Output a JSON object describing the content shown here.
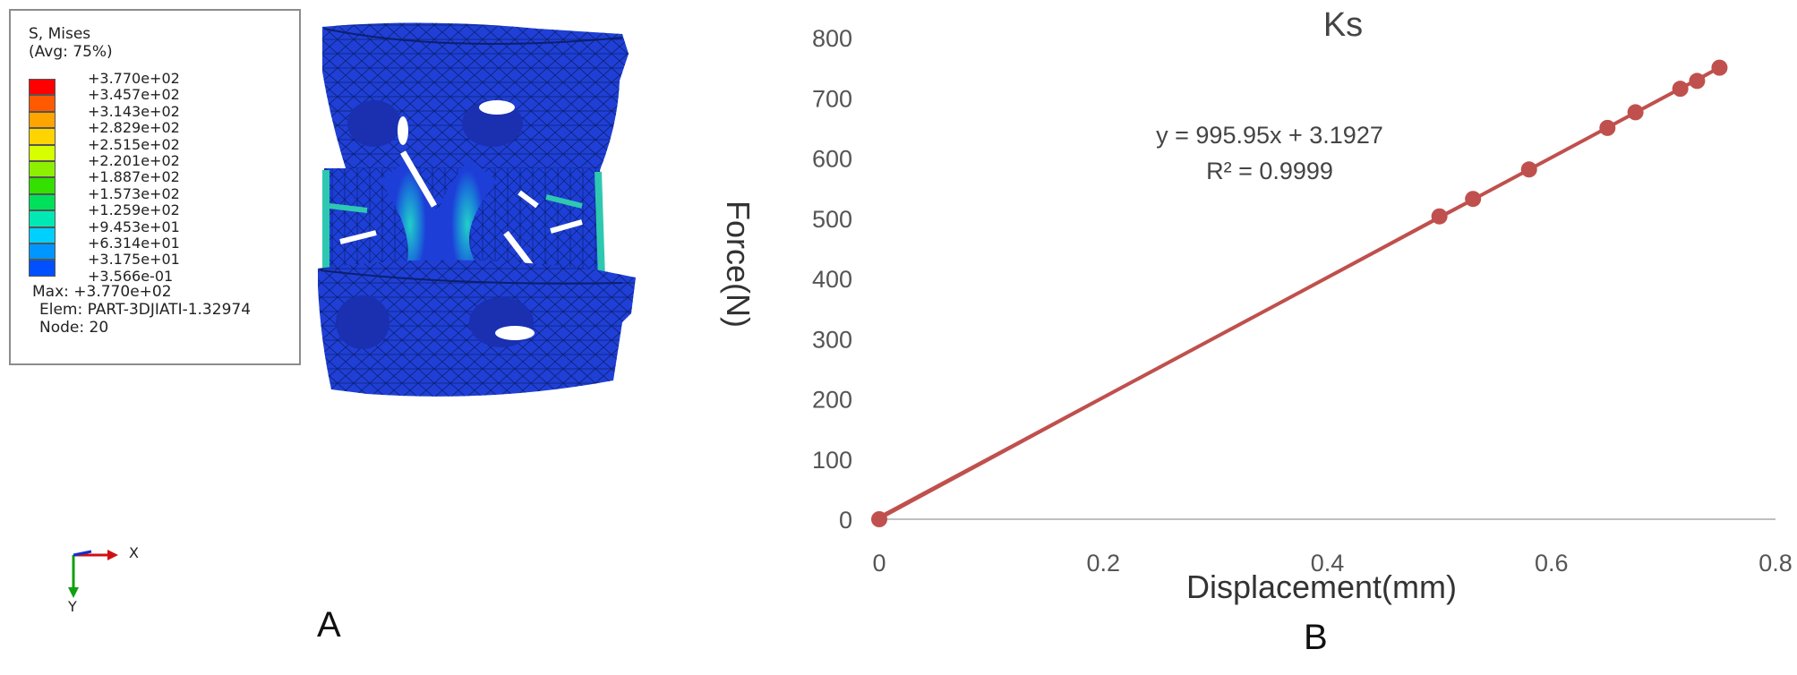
{
  "panel_a": {
    "legend": {
      "title_line1": "S, Mises",
      "title_line2": "(Avg: 75%)",
      "values": [
        "+3.770e+02",
        "+3.457e+02",
        "+3.143e+02",
        "+2.829e+02",
        "+2.515e+02",
        "+2.201e+02",
        "+1.887e+02",
        "+1.573e+02",
        "+1.259e+02",
        "+9.453e+01",
        "+6.314e+01",
        "+3.175e+01",
        "+3.566e-01"
      ],
      "colors": [
        "#ff0000",
        "#ff5a00",
        "#ffa500",
        "#ffd400",
        "#d8ff00",
        "#8cf000",
        "#33e000",
        "#00e05a",
        "#00e8b4",
        "#00d0ff",
        "#0096ff",
        "#0050ff",
        "#0000ff"
      ],
      "max_line": "Max: +3.770e+02",
      "elem_line": "Elem: PART-3DJIATI-1.32974",
      "node_line": "Node: 20"
    },
    "triad": {
      "x_label": "X",
      "y_label": "Y"
    },
    "letter": "A"
  },
  "panel_b": {
    "letter": "B",
    "equation": "y = 995.95x + 3.1927",
    "r_squared": "R² = 0.9999"
  },
  "chart_data": {
    "type": "scatter",
    "title": "Ks",
    "xlabel": "Displacement(mm)",
    "ylabel": "Force(N)",
    "xlim": [
      0,
      0.8
    ],
    "ylim": [
      0,
      800
    ],
    "x_ticks": [
      "0",
      "0.2",
      "0.4",
      "0.6",
      "0.8"
    ],
    "y_ticks": [
      "0",
      "100",
      "200",
      "300",
      "400",
      "500",
      "600",
      "700",
      "800"
    ],
    "grid": false,
    "series": [
      {
        "x": [
          0,
          0.5,
          0.53,
          0.58,
          0.65,
          0.675,
          0.715,
          0.73,
          0.75
        ],
        "y": [
          0,
          503,
          532,
          581,
          650,
          676,
          715,
          728,
          750
        ],
        "color": "#c0504d"
      }
    ],
    "trendline": {
      "slope": 995.95,
      "intercept": 3.1927,
      "color": "#c0504d"
    }
  }
}
